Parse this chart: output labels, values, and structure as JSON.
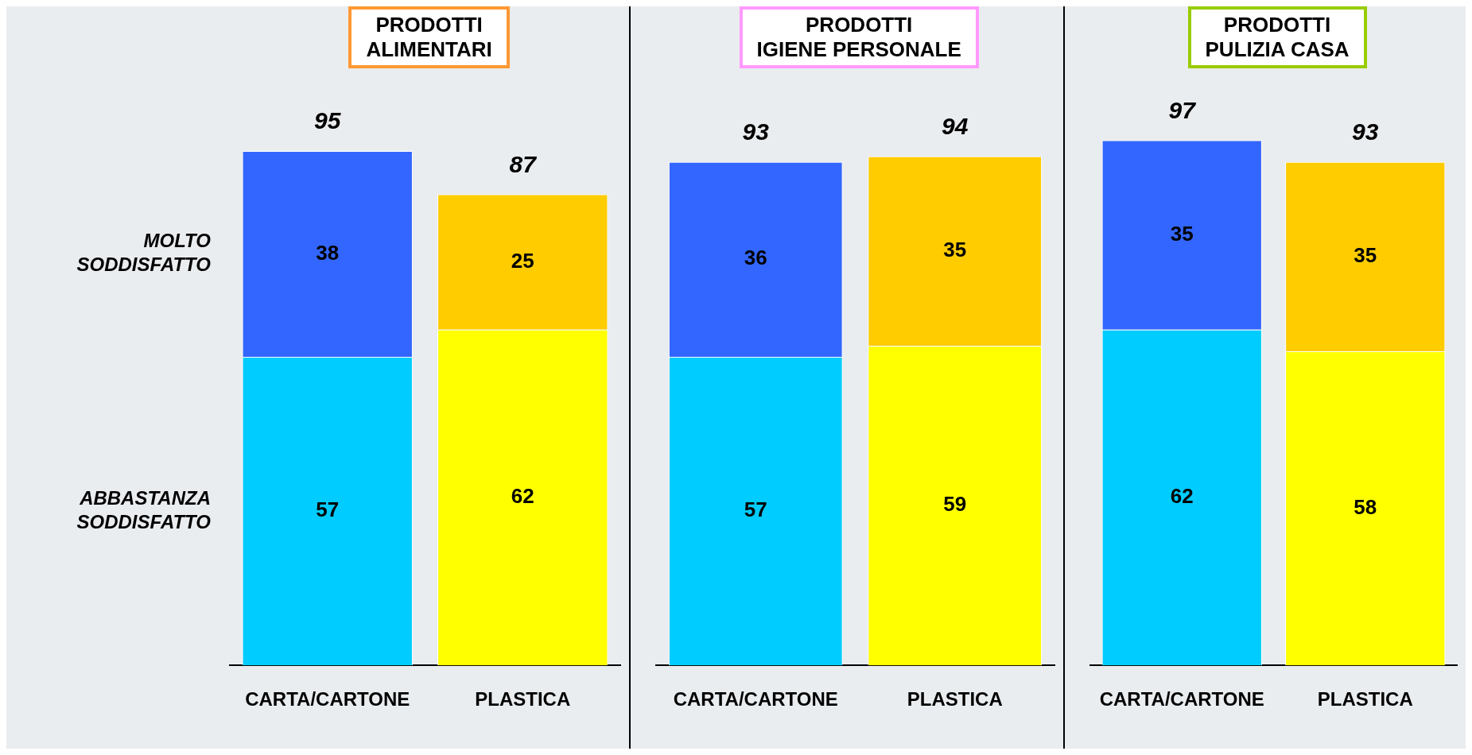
{
  "chart_data": [
    {
      "type": "bar",
      "title": "PRODOTTI\nALIMENTARI",
      "categories": [
        "CARTA/CARTONE",
        "PLASTICA"
      ],
      "stacked": true,
      "data_labels": true,
      "legend": false,
      "grid": false,
      "totals": [
        "95",
        "87"
      ],
      "series": [
        {
          "name": "ABBASTANZA\nSODDISFATTO",
          "colors": [
            "#00ccff",
            "#ffff00"
          ],
          "values": [
            57,
            62
          ]
        },
        {
          "name": "MOLTO\nSODDISFATTO",
          "colors": [
            "#3366ff",
            "#ffcc00"
          ],
          "values": [
            38,
            25
          ]
        }
      ]
    },
    {
      "type": "bar",
      "title": "PRODOTTI\nIGIENE PERSONALE",
      "categories": [
        "CARTA/CARTONE",
        "PLASTICA"
      ],
      "stacked": true,
      "data_labels": true,
      "legend": false,
      "grid": false,
      "totals": [
        "93",
        "94"
      ],
      "series": [
        {
          "colors": [
            "#00ccff",
            "#ffff00"
          ],
          "values": [
            57,
            59
          ]
        },
        {
          "colors": [
            "#3366ff",
            "#ffcc00"
          ],
          "values": [
            36,
            35
          ]
        }
      ]
    },
    {
      "type": "bar",
      "title": "PRODOTTI\nPULIZIA CASA",
      "categories": [
        "CARTA/CARTONE",
        "PLASTICA"
      ],
      "stacked": true,
      "data_labels": true,
      "legend": false,
      "grid": false,
      "totals": [
        "97",
        "93"
      ],
      "series": [
        {
          "colors": [
            "#00ccff",
            "#ffff00"
          ],
          "values": [
            62,
            58
          ]
        },
        {
          "colors": [
            "#3366ff",
            "#ffcc00"
          ],
          "values": [
            35,
            35
          ]
        }
      ]
    }
  ]
}
